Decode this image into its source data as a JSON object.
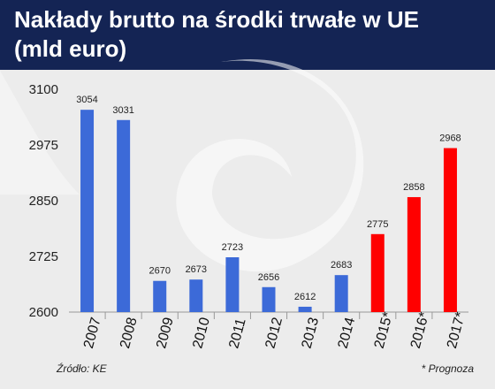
{
  "header": {
    "title": "Nakłady brutto na środki trwałe w UE\n(mld euro)"
  },
  "footer": {
    "source": "Źródło: KE",
    "note": "* Prognoza"
  },
  "colors": {
    "header_bg": "#142454",
    "actual": "#3c6ad8",
    "forecast": "#ff0000"
  },
  "chart_data": {
    "type": "bar",
    "title": "Nakłady brutto na środki trwałe w UE (mld euro)",
    "categories": [
      "2007",
      "2008",
      "2009",
      "2010",
      "2011",
      "2012",
      "2013",
      "2014",
      "2015*",
      "2016*",
      "2017*"
    ],
    "values": [
      3054,
      3031,
      2670,
      2673,
      2723,
      2656,
      2612,
      2683,
      2775,
      2858,
      2968
    ],
    "forecast": [
      false,
      false,
      false,
      false,
      false,
      false,
      false,
      false,
      true,
      true,
      true
    ],
    "yticks": [
      2600,
      2725,
      2850,
      2975,
      3100
    ],
    "ylim": [
      2600,
      3100
    ],
    "grid": false,
    "legend": "none"
  }
}
